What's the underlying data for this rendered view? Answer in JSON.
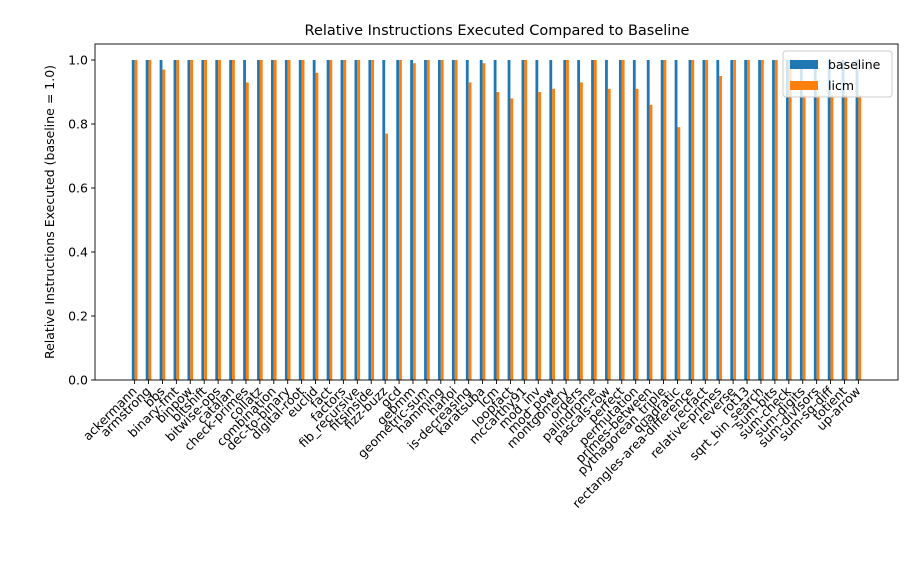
{
  "chart_data": {
    "type": "bar",
    "title": "Relative Instructions Executed Compared to Baseline",
    "xlabel": "",
    "ylabel": "Relative Instructions Executed (baseline = 1.0)",
    "ylim": [
      0,
      1.05
    ],
    "yticks": [
      "0.0",
      "0.2",
      "0.4",
      "0.6",
      "0.8",
      "1.0"
    ],
    "grid": false,
    "legend_position": "top-right",
    "categories": [
      "ackermann",
      "armstrong",
      "bbs",
      "binary-fmt",
      "binpow",
      "bitshift",
      "bitwise-ops",
      "catalan",
      "check-primes",
      "collatz",
      "combination",
      "dec-to-binary",
      "digital-root",
      "euclid",
      "fact",
      "factors",
      "fib_recursive",
      "fitsinside",
      "fizz-buzz",
      "gcd",
      "gebmm",
      "geometric-sum",
      "hamming",
      "hanoi",
      "is-decreasing",
      "karatsuba",
      "lcm",
      "loopfact",
      "mccarthy91",
      "mod_inv",
      "mod_pow",
      "montgomery",
      "orders",
      "palindrome",
      "pascals-row",
      "perfect",
      "permutation",
      "primes-between",
      "pythagorean_triple",
      "quadratic",
      "rectangles-area-difference",
      "recfact",
      "relative-primes",
      "reverse",
      "rot13",
      "sqrt_bin_search",
      "sum-bits",
      "sum-check",
      "sum-digits",
      "sum-divisors",
      "sum-sq-diff",
      "totient",
      "up-arrow"
    ],
    "series": [
      {
        "name": "baseline",
        "color": "#1f77b4",
        "values": [
          1.0,
          1.0,
          1.0,
          1.0,
          1.0,
          1.0,
          1.0,
          1.0,
          1.0,
          1.0,
          1.0,
          1.0,
          1.0,
          1.0,
          1.0,
          1.0,
          1.0,
          1.0,
          1.0,
          1.0,
          1.0,
          1.0,
          1.0,
          1.0,
          1.0,
          1.0,
          1.0,
          1.0,
          1.0,
          1.0,
          1.0,
          1.0,
          1.0,
          1.0,
          1.0,
          1.0,
          1.0,
          1.0,
          1.0,
          1.0,
          1.0,
          1.0,
          1.0,
          1.0,
          1.0,
          1.0,
          1.0,
          1.0,
          1.0,
          1.0,
          1.0,
          1.0,
          1.0
        ]
      },
      {
        "name": "licm",
        "color": "#ff7f0e",
        "values": [
          1.0,
          1.0,
          0.97,
          1.0,
          1.0,
          1.0,
          1.0,
          1.0,
          0.93,
          1.0,
          1.0,
          1.0,
          1.0,
          0.96,
          1.0,
          1.0,
          1.0,
          1.0,
          0.77,
          1.0,
          0.99,
          1.0,
          1.0,
          1.0,
          0.93,
          0.99,
          0.9,
          0.88,
          1.0,
          0.9,
          0.91,
          1.0,
          0.93,
          1.0,
          0.91,
          1.0,
          0.91,
          0.86,
          1.0,
          0.79,
          1.0,
          1.0,
          0.95,
          1.0,
          1.0,
          1.0,
          1.0,
          1.0,
          0.89,
          0.89,
          0.89,
          0.89,
          0.89
        ]
      }
    ]
  }
}
